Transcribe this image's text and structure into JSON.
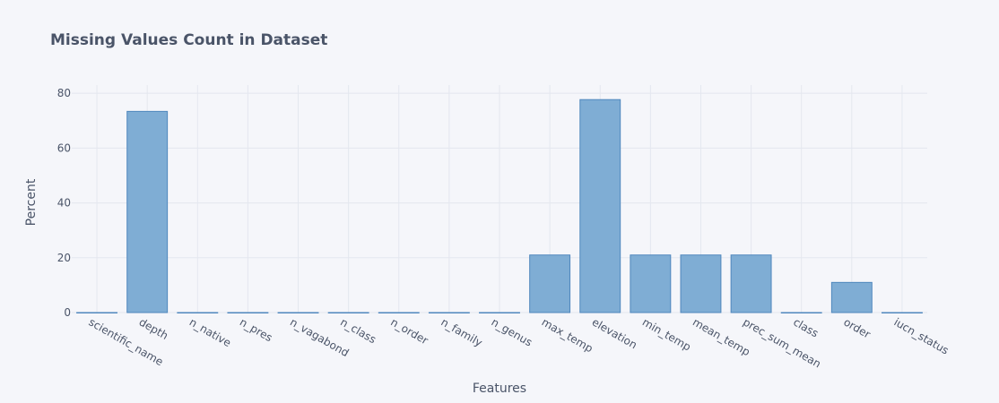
{
  "colors": {
    "bar_fill": "#7fadd4",
    "bar_stroke": "#4f87bd",
    "background": "#f5f6fa",
    "grid": "#e4e7ef",
    "text": "#4a5468"
  },
  "chart_data": {
    "type": "bar",
    "title": "Missing Values Count in Dataset",
    "xlabel": "Features",
    "ylabel": "Percent",
    "ylim": [
      0,
      83
    ],
    "yticks": [
      0,
      20,
      40,
      60,
      80
    ],
    "grid": true,
    "categories": [
      "scientific_name",
      "depth",
      "n_native",
      "n_pres",
      "n_vagabond",
      "n_class",
      "n_order",
      "n_family",
      "n_genus",
      "max_temp",
      "elevation",
      "min_temp",
      "mean_temp",
      "prec_sum_mean",
      "class",
      "order",
      "iucn_status"
    ],
    "values": [
      0,
      73.4,
      0,
      0,
      0,
      0,
      0,
      0,
      0,
      21,
      77.7,
      21,
      21,
      21,
      0,
      11,
      0
    ]
  }
}
